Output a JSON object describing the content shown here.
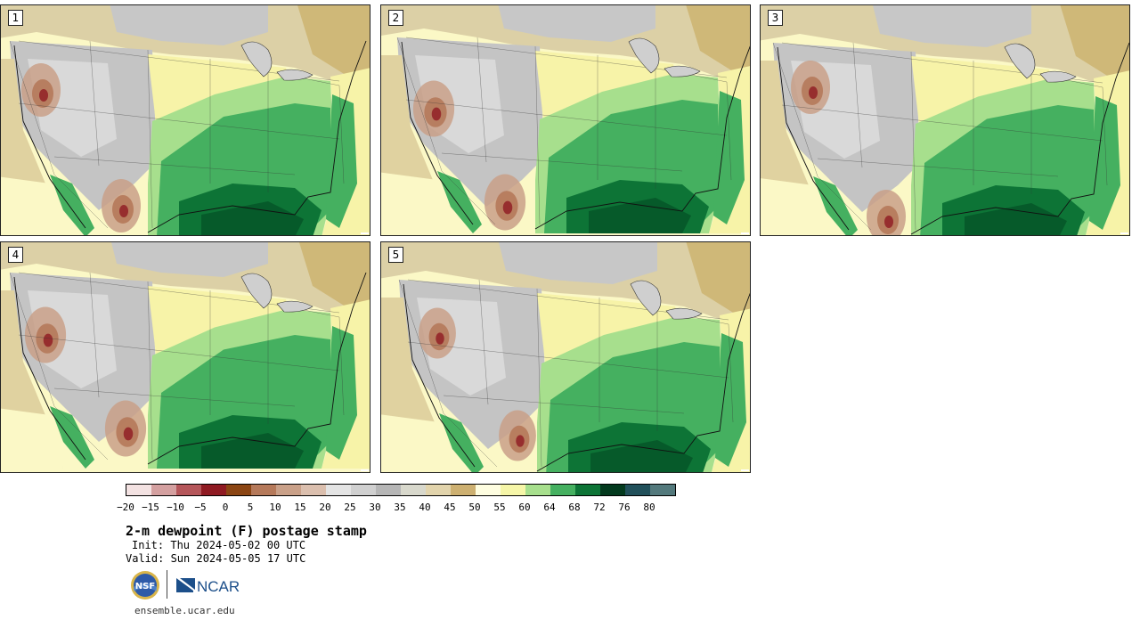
{
  "panels": [
    {
      "number": "1"
    },
    {
      "number": "2"
    },
    {
      "number": "3"
    },
    {
      "number": "4"
    },
    {
      "number": "5"
    }
  ],
  "colorbar": {
    "colors": [
      "#f3e2e2",
      "#d4a0a0",
      "#b5565a",
      "#8f1a22",
      "#8b4513",
      "#b5795a",
      "#c9a088",
      "#dbbfae",
      "#e4e4e4",
      "#d0d0d0",
      "#b6b6b6",
      "#d8d8cc",
      "#e2d4ac",
      "#cdb071",
      "#fefde0",
      "#f6f6a8",
      "#a7df8d",
      "#45b060",
      "#0d7436",
      "#033a1e",
      "#21505a",
      "#53797c"
    ],
    "labels": [
      "−20",
      "−15",
      "−10",
      "−5",
      "0",
      "5",
      "10",
      "15",
      "20",
      "25",
      "30",
      "35",
      "40",
      "45",
      "50",
      "55",
      "60",
      "64",
      "68",
      "72",
      "76",
      "80"
    ]
  },
  "title": "2-m dewpoint (F) postage stamp",
  "init": "Init: Thu 2024-05-02 00 UTC",
  "valid": "Valid: Sun 2024-05-05 17 UTC",
  "site": "ensemble.ucar.edu",
  "logos": {
    "nsf": "NSF",
    "ncar": "NCAR"
  },
  "icons": {
    "nsf": "nsf-logo-icon",
    "ncar": "ncar-logo-icon"
  }
}
